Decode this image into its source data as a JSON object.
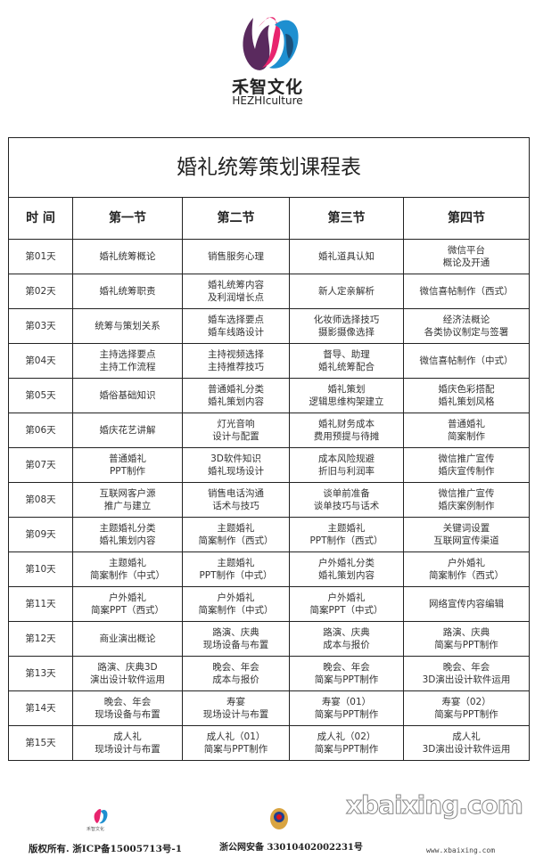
{
  "brand": {
    "name_cn": "禾智文化",
    "name_en": "HEZHIculture"
  },
  "table": {
    "title": "婚礼统筹策划课程表",
    "headers": [
      "时 间",
      "第一节",
      "第二节",
      "第三节",
      "第四节"
    ],
    "rows": [
      {
        "day": "第01天",
        "cells": [
          [
            "婚礼统筹概论"
          ],
          [
            "销售服务心理"
          ],
          [
            "婚礼道具认知"
          ],
          [
            "微信平台",
            "概论及开通"
          ]
        ]
      },
      {
        "day": "第02天",
        "cells": [
          [
            "婚礼统筹职责"
          ],
          [
            "婚礼统筹内容",
            "及利润增长点"
          ],
          [
            "新人定亲解析"
          ],
          [
            "微信喜帖制作（西式）"
          ]
        ]
      },
      {
        "day": "第03天",
        "cells": [
          [
            "统筹与策划关系"
          ],
          [
            "婚车选择要点",
            "婚车线路设计"
          ],
          [
            "化妆师选择技巧",
            "摄影摄像选择"
          ],
          [
            "经济法概论",
            "各类协议制定与签署"
          ]
        ]
      },
      {
        "day": "第04天",
        "cells": [
          [
            "主持选择要点",
            "主持工作流程"
          ],
          [
            "主持视频选择",
            "主持推荐技巧"
          ],
          [
            "督导、助理",
            "婚礼统筹配合"
          ],
          [
            "微信喜帖制作（中式）"
          ]
        ]
      },
      {
        "day": "第05天",
        "cells": [
          [
            "婚俗基础知识"
          ],
          [
            "普通婚礼分类",
            "婚礼策划内容"
          ],
          [
            "婚礼策划",
            "逻辑思维构架建立"
          ],
          [
            "婚庆色彩搭配",
            "婚礼策划风格"
          ]
        ]
      },
      {
        "day": "第06天",
        "cells": [
          [
            "婚庆花艺讲解"
          ],
          [
            "灯光音响",
            "设计与配置"
          ],
          [
            "婚礼财务成本",
            "费用预提与待摊"
          ],
          [
            "普通婚礼",
            "简案制作"
          ]
        ]
      },
      {
        "day": "第07天",
        "cells": [
          [
            "普通婚礼",
            "PPT制作"
          ],
          [
            "3D软件知识",
            "婚礼现场设计"
          ],
          [
            "成本风险规避",
            "折旧与利润率"
          ],
          [
            "微信推广宣传",
            "婚庆宣传制作"
          ]
        ]
      },
      {
        "day": "第08天",
        "cells": [
          [
            "互联网客户源",
            "推广与建立"
          ],
          [
            "销售电话沟通",
            "话术与技巧"
          ],
          [
            "谈单前准备",
            "谈单技巧与话术"
          ],
          [
            "微信推广宣传",
            "婚庆案例制作"
          ]
        ]
      },
      {
        "day": "第09天",
        "cells": [
          [
            "主题婚礼分类",
            "婚礼策划内容"
          ],
          [
            "主题婚礼",
            "简案制作（西式）"
          ],
          [
            "主题婚礼",
            "PPT制作（西式）"
          ],
          [
            "关键词设置",
            "互联网宣传渠道"
          ]
        ]
      },
      {
        "day": "第10天",
        "cells": [
          [
            "主题婚礼",
            "简案制作（中式）"
          ],
          [
            "主题婚礼",
            "PPT制作（中式）"
          ],
          [
            "户外婚礼分类",
            "婚礼策划内容"
          ],
          [
            "户外婚礼",
            "简案制作（西式）"
          ]
        ]
      },
      {
        "day": "第11天",
        "cells": [
          [
            "户外婚礼",
            "简案PPT（西式）"
          ],
          [
            "户外婚礼",
            "简案制作（中式）"
          ],
          [
            "户外婚礼",
            "简案PPT（中式）"
          ],
          [
            "网络宣传内容编辑"
          ]
        ]
      },
      {
        "day": "第12天",
        "cells": [
          [
            "商业演出概论"
          ],
          [
            "路演、庆典",
            "现场设备与布置"
          ],
          [
            "路演、庆典",
            "成本与报价"
          ],
          [
            "路演、庆典",
            "简案与PPT制作"
          ]
        ]
      },
      {
        "day": "第13天",
        "cells": [
          [
            "路演、庆典3D",
            "演出设计软件运用"
          ],
          [
            "晚会、年会",
            "成本与报价"
          ],
          [
            "晚会、年会",
            "简案与PPT制作"
          ],
          [
            "晚会、年会",
            "3D演出设计软件运用"
          ]
        ]
      },
      {
        "day": "第14天",
        "cells": [
          [
            "晚会、年会",
            "现场设备与布置"
          ],
          [
            "寿宴",
            "现场设计与布置"
          ],
          [
            "寿宴（01）",
            "简案与PPT制作"
          ],
          [
            "寿宴（02）",
            "简案与PPT制作"
          ]
        ]
      },
      {
        "day": "第15天",
        "cells": [
          [
            "成人礼",
            "现场设计与布置"
          ],
          [
            "成人礼（01）",
            "简案与PPT制作"
          ],
          [
            "成人礼（02）",
            "简案与PPT制作"
          ],
          [
            "成人礼",
            "3D演出设计软件运用"
          ]
        ]
      }
    ]
  },
  "footer": {
    "logo_text": "禾智文化",
    "copyright": "版权所有. 浙ICP备15005713号-1",
    "police": "浙公网安备 33010402002231号",
    "watermark": "xbaixing.com",
    "watermark_url": "www.xbaixing.com"
  },
  "colors": {
    "logo_pink": "#e8246e",
    "logo_blue": "#1e8fd0",
    "logo_purple": "#5a2a5e"
  }
}
